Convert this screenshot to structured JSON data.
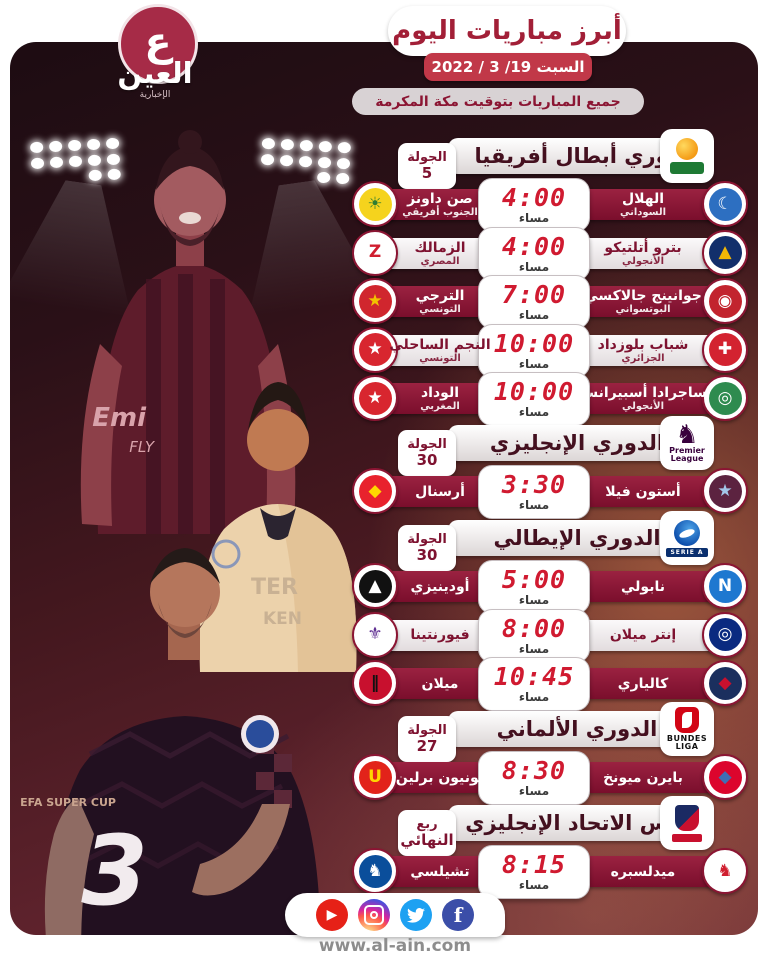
{
  "brand": {
    "glyph": "ع",
    "name": "العين",
    "tagline": "الإخبارية"
  },
  "header": {
    "title": "أبرز مباريات اليوم",
    "date": "السبت 19/ 3 / 2022",
    "note": "جميع المباريات بتوقيت مكة المكرمة"
  },
  "players": {
    "zlatan_shirt_line1": "Emi",
    "zlatan_shirt_line2": "FLY",
    "lautaro_shirt_line1": "TER",
    "lautaro_shirt_line2": "KEN",
    "ziyech_shirt_text": "UEFA SUPER CUP",
    "ziyech_sponsor": "3"
  },
  "sections": [
    {
      "id": "caf",
      "league": "دوري أبطال أفريقيا",
      "round_label": "الجولة",
      "round_value": "5",
      "logo_caption": "",
      "matches": [
        {
          "time": "4:00",
          "suffix": "مساء",
          "home": {
            "name": "الهلال",
            "sub": "السوداني",
            "bg": "#2d6fc1",
            "glyph": "☾",
            "fg": "#ffffff"
          },
          "away": {
            "name": "صن داونز",
            "sub": "الجنوب أفريقي",
            "bg": "#f5d31d",
            "glyph": "☀",
            "fg": "#2f7d32"
          }
        },
        {
          "time": "4:00",
          "suffix": "مساء",
          "home": {
            "name": "بترو أتلتيكو",
            "sub": "الأنجولي",
            "bg": "#122f6b",
            "glyph": "▲",
            "fg": "#f2b705"
          },
          "away": {
            "name": "الزمالك",
            "sub": "المصري",
            "bg": "#ffffff",
            "glyph": "Z",
            "fg": "#d01e2f"
          }
        },
        {
          "time": "7:00",
          "suffix": "مساء",
          "home": {
            "name": "جوانينج جالاكسي",
            "sub": "البوتسواني",
            "bg": "#c2242e",
            "glyph": "◉",
            "fg": "#ffffff"
          },
          "away": {
            "name": "الترجي",
            "sub": "التونسي",
            "bg": "#d0262e",
            "glyph": "★",
            "fg": "#f2c200"
          }
        },
        {
          "time": "10:00",
          "suffix": "مساء",
          "home": {
            "name": "شباب بلوزداد",
            "sub": "الجزائري",
            "bg": "#d32330",
            "glyph": "✚",
            "fg": "#ffffff"
          },
          "away": {
            "name": "النجم الساحلي",
            "sub": "التونسي",
            "bg": "#d8262f",
            "glyph": "★",
            "fg": "#ffffff"
          }
        },
        {
          "time": "10:00",
          "suffix": "مساء",
          "home": {
            "name": "ساجرادا أسبيرانسا",
            "sub": "الأنجولي",
            "bg": "#2e8b4f",
            "glyph": "◎",
            "fg": "#ffffff"
          },
          "away": {
            "name": "الوداد",
            "sub": "المغربي",
            "bg": "#d8262f",
            "glyph": "★",
            "fg": "#ffffff"
          }
        }
      ]
    },
    {
      "id": "epl",
      "league": "الدوري الإنجليزي",
      "round_label": "الجولة",
      "round_value": "30",
      "logo_caption": "Premier League",
      "matches": [
        {
          "time": "3:30",
          "suffix": "مساء",
          "home": {
            "name": "أستون فيلا",
            "sub": "",
            "bg": "#5c2340",
            "glyph": "★",
            "fg": "#a3c6e8"
          },
          "away": {
            "name": "أرسنال",
            "sub": "",
            "bg": "#e8222d",
            "glyph": "◆",
            "fg": "#ffd700"
          }
        }
      ]
    },
    {
      "id": "seriea",
      "league": "الدوري الإيطالي",
      "round_label": "الجولة",
      "round_value": "30",
      "logo_caption": "SERIE A",
      "matches": [
        {
          "time": "5:00",
          "suffix": "مساء",
          "home": {
            "name": "نابولي",
            "sub": "",
            "bg": "#1e78d0",
            "glyph": "N",
            "fg": "#ffffff"
          },
          "away": {
            "name": "أودينيزي",
            "sub": "",
            "bg": "#111111",
            "glyph": "▲",
            "fg": "#ffffff"
          }
        },
        {
          "time": "8:00",
          "suffix": "مساء",
          "home": {
            "name": "إنتر ميلان",
            "sub": "",
            "bg": "#0a2a80",
            "glyph": "◎",
            "fg": "#ffffff"
          },
          "away": {
            "name": "فيورنتينا",
            "sub": "",
            "bg": "#ffffff",
            "glyph": "⚜",
            "fg": "#5e2d91"
          }
        },
        {
          "time": "10:45",
          "suffix": "مساء",
          "home": {
            "name": "كالياري",
            "sub": "",
            "bg": "#1b2f5e",
            "glyph": "◆",
            "fg": "#c8102e"
          },
          "away": {
            "name": "ميلان",
            "sub": "",
            "bg": "#c8102e",
            "glyph": "‖",
            "fg": "#111111"
          }
        }
      ]
    },
    {
      "id": "bundesliga",
      "league": "الدوري الألماني",
      "round_label": "الجولة",
      "round_value": "27",
      "logo_caption": "BUNDES LIGA",
      "matches": [
        {
          "time": "8:30",
          "suffix": "مساء",
          "home": {
            "name": "بايرن ميونخ",
            "sub": "",
            "bg": "#dc052d",
            "glyph": "◆",
            "fg": "#3f6fb5"
          },
          "away": {
            "name": "يونيون برلين",
            "sub": "",
            "bg": "#e2231a",
            "glyph": "U",
            "fg": "#ffd500"
          }
        }
      ]
    },
    {
      "id": "facup",
      "league": "كأس الاتحاد الإنجليزي",
      "round_label": "ربع",
      "round_value": "النهائي",
      "logo_caption": "",
      "matches": [
        {
          "time": "8:15",
          "suffix": "مساء",
          "home": {
            "name": "ميدلسبره",
            "sub": "",
            "bg": "#ffffff",
            "glyph": "♞",
            "fg": "#d01e2f"
          },
          "away": {
            "name": "تشيلسي",
            "sub": "",
            "bg": "#0a4e9b",
            "glyph": "♞",
            "fg": "#ffffff"
          }
        }
      ]
    }
  ],
  "footer": {
    "url": "www.al-ain.com",
    "socials": [
      {
        "name": "facebook",
        "color": "#3b4ea8"
      },
      {
        "name": "twitter",
        "color": "#1da1f2"
      },
      {
        "name": "instagram",
        "color": "gradient"
      },
      {
        "name": "youtube",
        "color": "#e62117"
      }
    ]
  }
}
